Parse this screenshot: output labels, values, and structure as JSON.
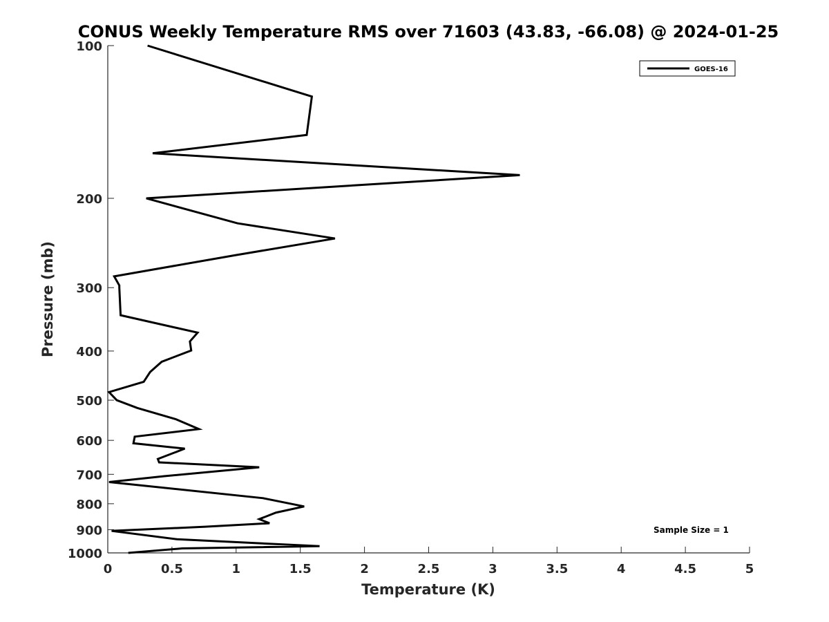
{
  "chart_data": {
    "type": "line",
    "title": "CONUS Weekly Temperature RMS over 71603 (43.83, -66.08) @ 2024-01-25",
    "xlabel": "Temperature (K)",
    "ylabel": "Pressure (mb)",
    "xlim": [
      0,
      5
    ],
    "ylim": [
      100,
      1000
    ],
    "y_scale": "log",
    "y_reversed": true,
    "grid": false,
    "x_ticks": [
      0,
      0.5,
      1,
      1.5,
      2,
      2.5,
      3,
      3.5,
      4,
      4.5,
      5
    ],
    "x_tick_labels": [
      "0",
      "0.5",
      "1",
      "1.5",
      "2",
      "2.5",
      "3",
      "3.5",
      "4",
      "4.5",
      "5"
    ],
    "y_ticks": [
      100,
      200,
      300,
      400,
      500,
      600,
      700,
      800,
      900,
      1000
    ],
    "y_tick_labels": [
      "100",
      "200",
      "300",
      "400",
      "500",
      "600",
      "700",
      "800",
      "900",
      "1000"
    ],
    "legend": {
      "placement": "top-right",
      "entries": [
        "GOES-16"
      ]
    },
    "annotation": "Sample Size = 1",
    "series": [
      {
        "name": "GOES-16",
        "color": "#000000",
        "x": [
          0.31,
          1.59,
          1.55,
          0.35,
          3.21,
          0.3,
          1.01,
          1.77,
          0.99,
          0.05,
          0.09,
          0.09,
          0.1,
          0.7,
          0.64,
          0.65,
          0.42,
          0.33,
          0.28,
          0.01,
          0.07,
          0.23,
          0.53,
          0.71,
          0.21,
          0.2,
          0.6,
          0.39,
          0.4,
          1.18,
          0.44,
          0.01,
          1.21,
          1.53,
          1.31,
          1.18,
          1.26,
          0.76,
          0.03,
          0.54,
          1.65,
          0.58,
          0.16
        ],
        "y": [
          100,
          126,
          150,
          163,
          180,
          200,
          224,
          240,
          259,
          285,
          297,
          300,
          340,
          368,
          383,
          399,
          420,
          440,
          460,
          482,
          500,
          518,
          545,
          570,
          590,
          608,
          623,
          653,
          663,
          678,
          706,
          725,
          780,
          810,
          833,
          858,
          874,
          888,
          905,
          940,
          970,
          980,
          1000
        ]
      }
    ]
  }
}
